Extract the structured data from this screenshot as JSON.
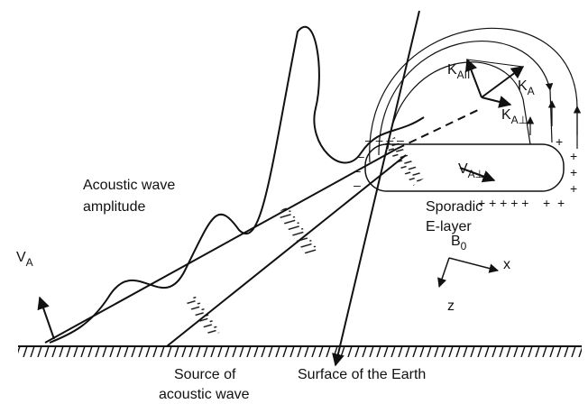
{
  "labels": {
    "v_a": {
      "main": "V",
      "sub": "A"
    },
    "k_a_par": {
      "main": "K",
      "sub": "AII"
    },
    "k_a": {
      "main": "K",
      "sub": "A"
    },
    "k_a_perp": {
      "main": "K",
      "sub": "A⊥"
    },
    "v_a_perp": {
      "main": "V",
      "sub": "A⊥"
    },
    "b_0": {
      "main": "B",
      "sub": "0"
    },
    "axis_x": "x",
    "axis_z": "z",
    "acoustic_amplitude": [
      "Acoustic wave",
      "amplitude"
    ],
    "e_layer": [
      "Sporadic",
      "E-layer"
    ],
    "source": [
      "Source of",
      "acoustic wave"
    ],
    "surface": "Surface of the Earth"
  },
  "charges": {
    "minus_top": "– – – –",
    "minus_left_1": "–",
    "minus_left_2": "–",
    "minus_left_3": "–",
    "plus_bottom": "+ + + + +",
    "plus_right_1": "+",
    "plus_right_2": "+",
    "plus_right_3": "+",
    "plus_right_4": "+",
    "plus_right_5": "+",
    "plus_right_6": "+"
  }
}
